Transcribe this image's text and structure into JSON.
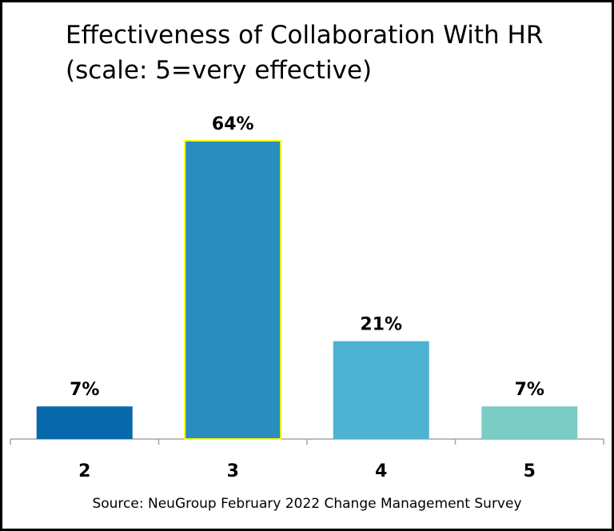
{
  "chart_data": {
    "type": "bar",
    "title": "Effectiveness of Collaboration With HR (scale: 5=very effective)",
    "categories": [
      "2",
      "3",
      "4",
      "5"
    ],
    "values": [
      7,
      64,
      21,
      7
    ],
    "data_labels": [
      "7%",
      "64%",
      "21%",
      "7%"
    ],
    "colors": [
      "#0868ac",
      "#2b8cbe",
      "#4eb3d3",
      "#7bccc4"
    ],
    "highlight_outline": "#ffff00",
    "xlabel": "",
    "ylabel": "",
    "ylim": [
      0,
      64
    ],
    "grid": false,
    "legend": "none"
  },
  "source": "Source: NeuGroup February 2022 Change Management Survey"
}
